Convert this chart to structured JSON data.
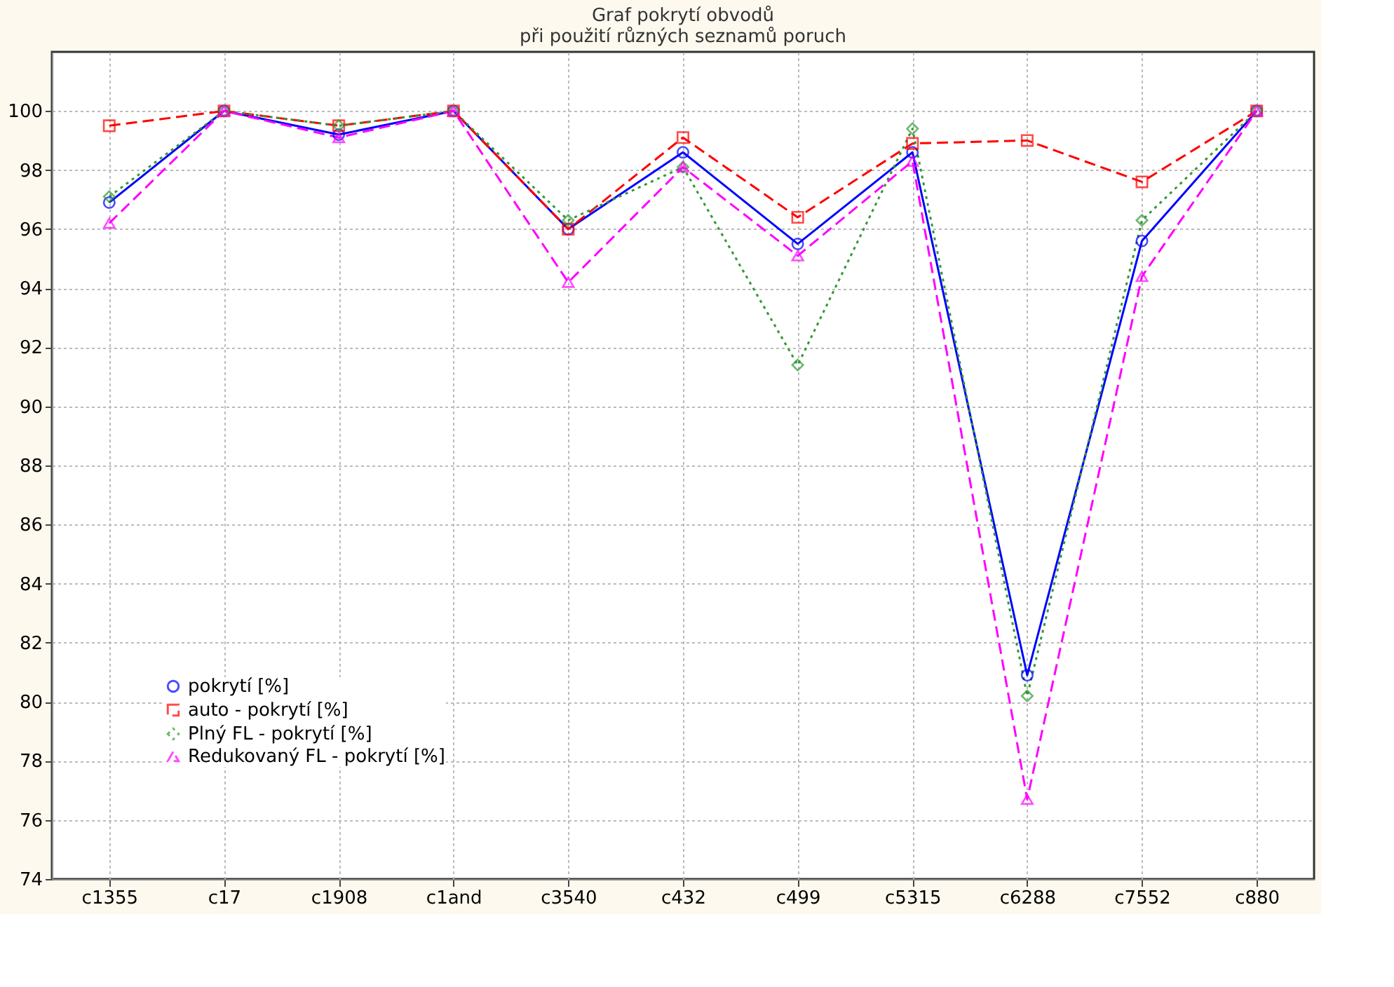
{
  "chart_data": {
    "type": "line",
    "title": "Graf pokrytí obvodů\npři použití různých seznamů poruch",
    "categories": [
      "c1355",
      "c17",
      "c1908",
      "c1and",
      "c3540",
      "c432",
      "c499",
      "c5315",
      "c6288",
      "c7552",
      "c880"
    ],
    "series": [
      {
        "name": "pokrytí [%]",
        "color": "#0000ff",
        "marker": "circle",
        "line_style": "solid",
        "values": [
          96.9,
          100,
          99.2,
          100,
          96.0,
          98.6,
          95.5,
          98.6,
          80.9,
          95.6,
          100
        ]
      },
      {
        "name": "auto - pokrytí [%]",
        "color": "#ff0000",
        "marker": "square",
        "line_style": "dashed",
        "values": [
          99.5,
          100,
          99.5,
          100,
          96.0,
          99.1,
          96.4,
          98.9,
          99.0,
          97.6,
          100
        ]
      },
      {
        "name": "Plný FL - pokrytí [%]",
        "color": "#339933",
        "marker": "diamond",
        "line_style": "dotted",
        "values": [
          97.1,
          100,
          99.5,
          100,
          96.3,
          98.1,
          91.4,
          99.4,
          80.2,
          96.3,
          100
        ]
      },
      {
        "name": "Redukovaný FL - pokrytí [%]",
        "color": "#ff00ff",
        "marker": "triangle",
        "line_style": "dashed",
        "values": [
          96.2,
          100,
          99.1,
          100,
          94.2,
          98.1,
          95.1,
          98.3,
          76.7,
          94.4,
          100
        ]
      }
    ],
    "ylim": [
      74,
      102
    ],
    "yticks": [
      74,
      76,
      78,
      80,
      82,
      84,
      86,
      88,
      90,
      92,
      94,
      96,
      98,
      100
    ],
    "grid": true,
    "legend": "bottom left"
  }
}
